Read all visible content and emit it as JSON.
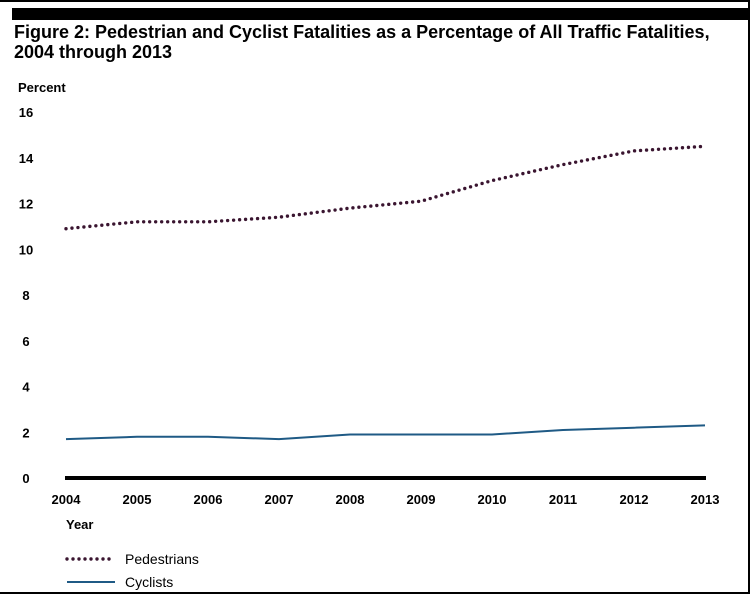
{
  "figure": {
    "title_line1": "Figure 2: Pedestrian and Cyclist Fatalities as a Percentage of All Traffic Fatalities,",
    "title_line2": "2004 through 2013"
  },
  "chart_data": {
    "type": "line",
    "title": "Figure 2: Pedestrian and Cyclist Fatalities as a Percentage of All Traffic Fatalities, 2004 through 2013",
    "ylabel": "Percent",
    "xlabel": "Year",
    "x": [
      "2004",
      "2005",
      "2006",
      "2007",
      "2008",
      "2009",
      "2010",
      "2011",
      "2012",
      "2013"
    ],
    "ylim": [
      0,
      16
    ],
    "yticks": [
      0,
      2,
      4,
      6,
      8,
      10,
      12,
      14,
      16
    ],
    "grid": false,
    "legend_position": "bottom-left",
    "series": [
      {
        "name": "Pedestrians",
        "style": "dotted",
        "color": "#3a1530",
        "values": [
          10.9,
          11.2,
          11.2,
          11.4,
          11.8,
          12.1,
          13.0,
          13.7,
          14.3,
          14.5
        ]
      },
      {
        "name": "Cyclists",
        "style": "solid",
        "color": "#1f5a85",
        "values": [
          1.7,
          1.8,
          1.8,
          1.7,
          1.9,
          1.9,
          1.9,
          2.1,
          2.2,
          2.3
        ]
      }
    ]
  }
}
